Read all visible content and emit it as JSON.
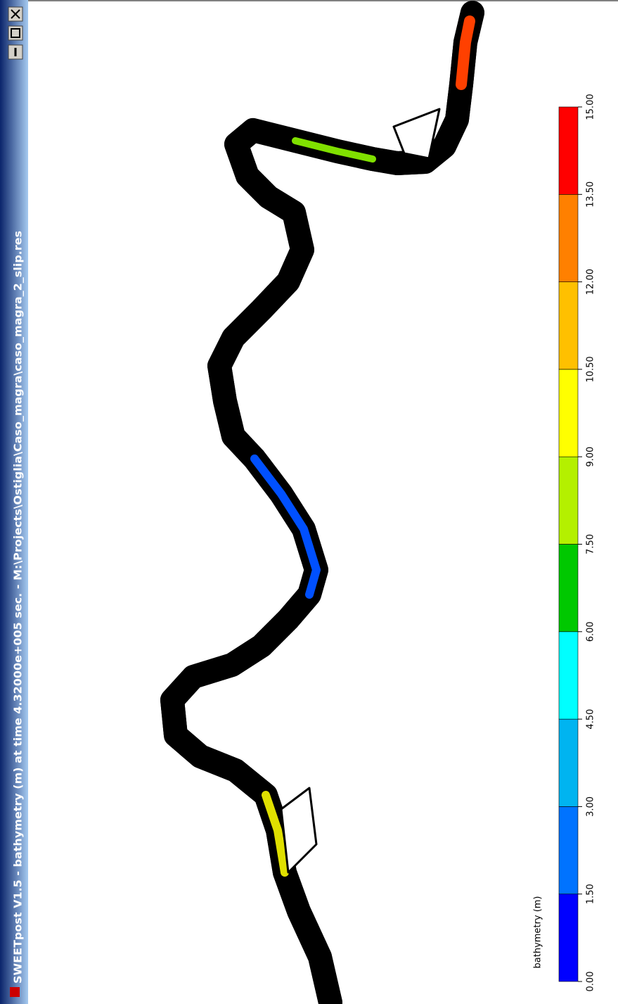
{
  "window": {
    "title": "SWEETpost V1.5 - bathymetry (m) at time  4.32000e+005 sec. - M:\\Projects\\Ostiglia\\Caso_magra\\caso_magra_2_slip.res"
  },
  "legend": {
    "title": "bathymetry (m)",
    "ticks": [
      {
        "value": 0,
        "label": "0.00"
      },
      {
        "value": 1.5,
        "label": "1.50"
      },
      {
        "value": 3,
        "label": "3.00"
      },
      {
        "value": 4.5,
        "label": "4.50"
      },
      {
        "value": 6,
        "label": "6.00"
      },
      {
        "value": 7.5,
        "label": "7.50"
      },
      {
        "value": 9,
        "label": "9.00"
      },
      {
        "value": 10.5,
        "label": "10.50"
      },
      {
        "value": 12,
        "label": "12.00"
      },
      {
        "value": 13.5,
        "label": "13.50"
      },
      {
        "value": 15,
        "label": "15.00"
      }
    ],
    "colors": [
      "#0000ff",
      "#0073ff",
      "#00b4f0",
      "#00ffff",
      "#00c800",
      "#b4f000",
      "#ffff00",
      "#ffc000",
      "#ff8000",
      "#ff0000"
    ]
  }
}
